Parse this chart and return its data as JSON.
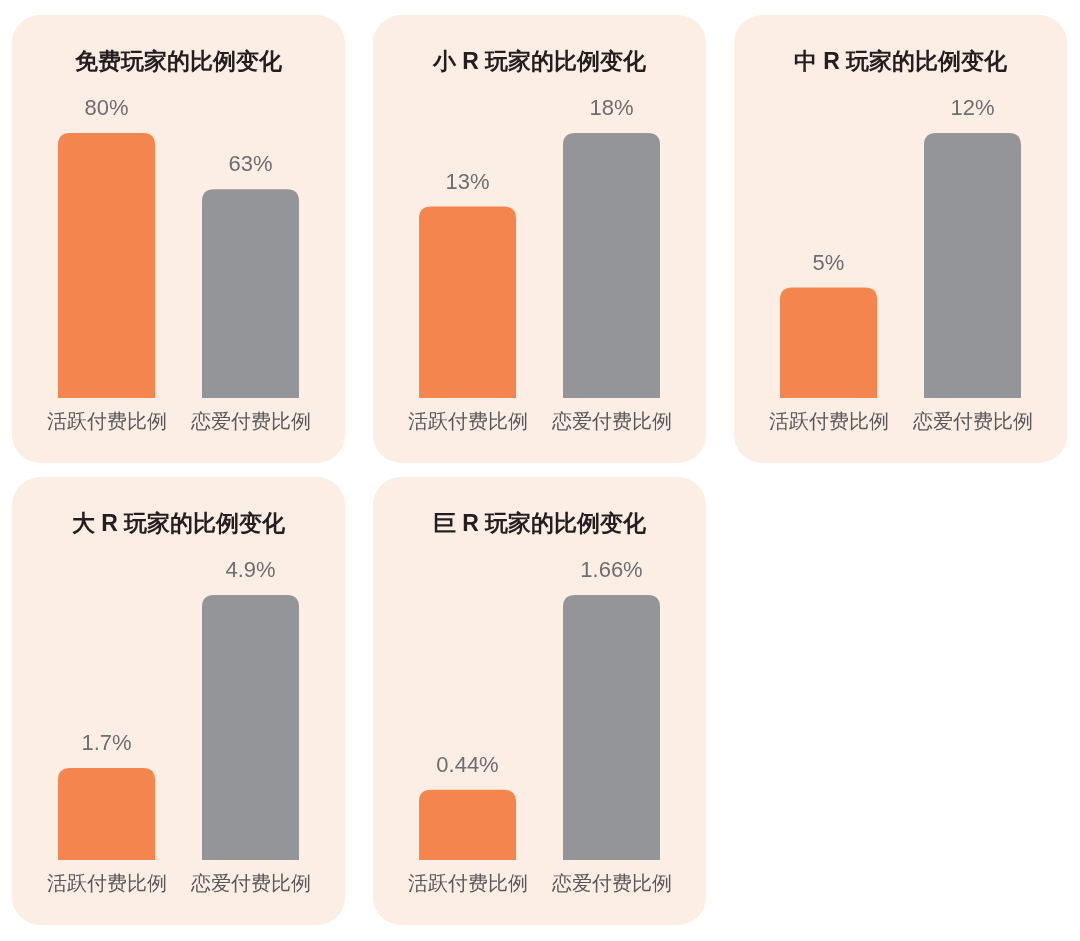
{
  "chart_data": [
    {
      "type": "bar",
      "title": "免费玩家的比例变化",
      "categories": [
        "活跃付费比例",
        "恋爱付费比例"
      ],
      "values": [
        80,
        63
      ],
      "value_labels": [
        "80%",
        "63%"
      ],
      "colors": [
        "#f5854f",
        "#939598"
      ]
    },
    {
      "type": "bar",
      "title": "小 R 玩家的比例变化",
      "categories": [
        "活跃付费比例",
        "恋爱付费比例"
      ],
      "values": [
        13,
        18
      ],
      "value_labels": [
        "13%",
        "18%"
      ],
      "colors": [
        "#f5854f",
        "#939598"
      ]
    },
    {
      "type": "bar",
      "title": "中 R 玩家的比例变化",
      "categories": [
        "活跃付费比例",
        "恋爱付费比例"
      ],
      "values": [
        5,
        12
      ],
      "value_labels": [
        "5%",
        "12%"
      ],
      "colors": [
        "#f5854f",
        "#939598"
      ]
    },
    {
      "type": "bar",
      "title": "大 R 玩家的比例变化",
      "categories": [
        "活跃付费比例",
        "恋爱付费比例"
      ],
      "values": [
        1.7,
        4.9
      ],
      "value_labels": [
        "1.7%",
        "4.9%"
      ],
      "colors": [
        "#f5854f",
        "#939598"
      ]
    },
    {
      "type": "bar",
      "title": "巨 R 玩家的比例变化",
      "categories": [
        "活跃付费比例",
        "恋爱付费比例"
      ],
      "values": [
        0.44,
        1.66
      ],
      "value_labels": [
        "0.44%",
        "1.66%"
      ],
      "colors": [
        "#f5854f",
        "#939598"
      ]
    }
  ]
}
